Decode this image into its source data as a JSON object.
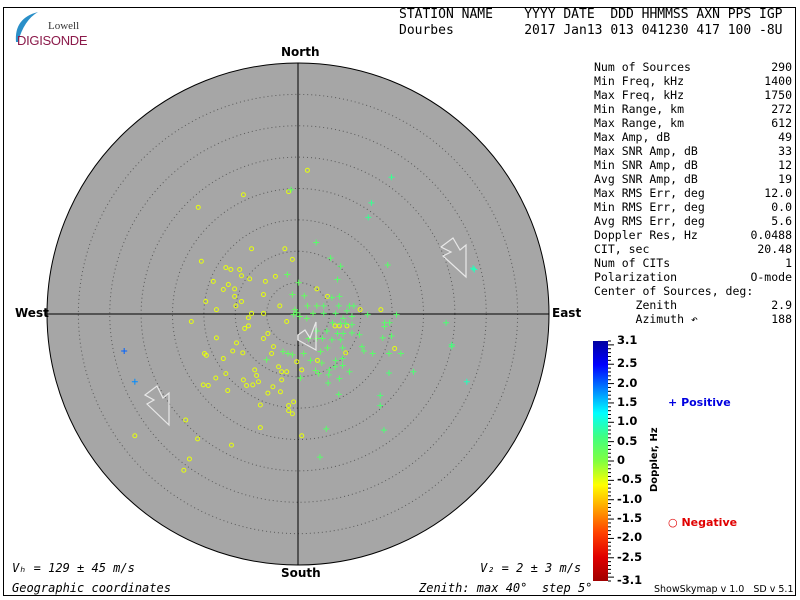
{
  "logo": {
    "line1": "Lowell",
    "line2": "DIGISONDE"
  },
  "header": {
    "labels": "STATION NAME    YYYY DATE  DDD HHMMSS AXN PPS IGP",
    "values": "Dourbes         2017 Jan13 013 041230 417 100 -8U"
  },
  "directions": {
    "north": "North",
    "south": "South",
    "east": "East",
    "west": "West"
  },
  "stats": [
    {
      "label": "Num of Sources",
      "value": "290"
    },
    {
      "label": "Min Freq, kHz",
      "value": "1400"
    },
    {
      "label": "Max Freq, kHz",
      "value": "1750"
    },
    {
      "label": "Min Range, km",
      "value": "272"
    },
    {
      "label": "Max Range, km",
      "value": "612"
    },
    {
      "label": "Max Amp, dB",
      "value": "49"
    },
    {
      "label": "Max SNR Amp, dB",
      "value": "33"
    },
    {
      "label": "Min SNR Amp, dB",
      "value": "12"
    },
    {
      "label": "Avg SNR Amp, dB",
      "value": "19"
    },
    {
      "label": "Max RMS Err, deg",
      "value": "12.0"
    },
    {
      "label": "Min RMS Err, deg",
      "value": "0.0"
    },
    {
      "label": "Avg RMS Err, deg",
      "value": "5.6"
    },
    {
      "label": "Doppler Res, Hz",
      "value": "0.0488"
    },
    {
      "label": "CIT, sec",
      "value": "20.48"
    },
    {
      "label": "Num of CITs",
      "value": "1"
    },
    {
      "label": "Polarization",
      "value": "O-mode"
    },
    {
      "label": "Center of Sources, deg:",
      "value": ""
    },
    {
      "label": "      Zenith",
      "value": "2.9"
    },
    {
      "label": "      Azimuth ↶",
      "value": "188"
    }
  ],
  "footer": {
    "vh": "Vₕ = 129 ± 45 m/s",
    "vz": "V₂ = 2 ± 3 m/s",
    "coords": "Geographic coordinates",
    "zenith": "Zenith: max 40°  step 5°",
    "version": "ShowSkymap v 1.0   SD v 5.1"
  },
  "colorbar": {
    "title": "Doppler, Hz",
    "ticks": [
      "3.1",
      "2.5",
      "2.0",
      "1.5",
      "1.0",
      "0.5",
      "0",
      "-0.5",
      "-1.0",
      "-1.5",
      "-2.0",
      "-2.5",
      "-3.1"
    ],
    "range": [
      -3.1,
      3.1
    ],
    "colors": [
      "#0000a0",
      "#0000ff",
      "#0080ff",
      "#00ffff",
      "#40ff80",
      "#80ff40",
      "#ffff00",
      "#ffa000",
      "#ff4000",
      "#e00000",
      "#a00000"
    ]
  },
  "legend": {
    "positive": "Positive",
    "positive_color": "#0000e0",
    "negative": "Negative",
    "negative_color": "#e00000"
  },
  "chart_data": {
    "type": "scatter",
    "title": "",
    "zenith_max_deg": 40,
    "ring_step_deg": 5,
    "point_format": "[east_deg, north_deg, doppler_hz]",
    "negative_points": [
      [
        1.5,
        22.9,
        -0.5
      ],
      [
        -8.7,
        19.0,
        -0.5
      ],
      [
        -15.9,
        17.0,
        -0.5
      ],
      [
        -1.5,
        19.5,
        -0.5
      ],
      [
        -7.4,
        10.4,
        -0.5
      ],
      [
        -2.1,
        10.4,
        -0.5
      ],
      [
        -15.4,
        8.4,
        -0.5
      ],
      [
        -0.9,
        8.7,
        -0.5
      ],
      [
        -11.5,
        7.4,
        -0.5
      ],
      [
        -10.7,
        7.1,
        -0.5
      ],
      [
        -9.3,
        7.1,
        -0.5
      ],
      [
        -9.0,
        6.1,
        -0.5
      ],
      [
        -13.5,
        5.2,
        -0.5
      ],
      [
        -7.7,
        5.6,
        -0.5
      ],
      [
        -3.6,
        6.0,
        -0.5
      ],
      [
        -11.1,
        4.7,
        -0.5
      ],
      [
        -11.9,
        3.9,
        -0.5
      ],
      [
        -10.1,
        4.0,
        -0.5
      ],
      [
        -5.2,
        5.2,
        -0.5
      ],
      [
        -14.7,
        2.0,
        -0.5
      ],
      [
        -13.0,
        0.7,
        -0.5
      ],
      [
        -10.1,
        2.8,
        -0.5
      ],
      [
        -9.0,
        2.0,
        -0.5
      ],
      [
        -9.9,
        1.3,
        -0.5
      ],
      [
        -5.5,
        3.1,
        -0.5
      ],
      [
        -2.9,
        1.3,
        -0.5
      ],
      [
        -7.4,
        0.1,
        -0.5
      ],
      [
        -7.9,
        -0.6,
        -0.5
      ],
      [
        -5.5,
        0.1,
        -0.5
      ],
      [
        -7.9,
        -1.9,
        -0.5
      ],
      [
        -8.5,
        -2.3,
        -0.5
      ],
      [
        -17.0,
        -1.2,
        -0.5
      ],
      [
        -13.0,
        -3.8,
        -0.5
      ],
      [
        -9.8,
        -4.6,
        -0.5
      ],
      [
        -10.4,
        -5.9,
        -0.5
      ],
      [
        -14.9,
        -6.3,
        -0.5
      ],
      [
        -14.6,
        -6.6,
        -0.5
      ],
      [
        -11.9,
        -7.1,
        -0.5
      ],
      [
        -8.8,
        -6.2,
        -0.5
      ],
      [
        -5.5,
        -3.9,
        -0.5
      ],
      [
        -4.8,
        -3.1,
        -0.5
      ],
      [
        -3.9,
        -5.2,
        -0.5
      ],
      [
        -4.2,
        -6.3,
        -0.5
      ],
      [
        -6.9,
        -8.9,
        -0.5
      ],
      [
        -6.6,
        -9.8,
        -0.5
      ],
      [
        -13.1,
        -10.2,
        -0.5
      ],
      [
        -11.5,
        -9.5,
        -0.5
      ],
      [
        -15.1,
        -11.3,
        -0.5
      ],
      [
        -14.3,
        -11.4,
        -0.5
      ],
      [
        -11.2,
        -12.2,
        -0.5
      ],
      [
        -8.7,
        -10.5,
        -0.5
      ],
      [
        -8.2,
        -11.4,
        -0.5
      ],
      [
        -7.2,
        -11.3,
        -0.5
      ],
      [
        -6.3,
        -10.8,
        -0.5
      ],
      [
        -4.8,
        -12.6,
        -0.5
      ],
      [
        -2.8,
        -12.4,
        -0.5
      ],
      [
        -4.0,
        -11.6,
        -0.5
      ],
      [
        -3.1,
        -8.4,
        -0.5
      ],
      [
        -2.6,
        -9.2,
        -0.5
      ],
      [
        -2.6,
        -10.5,
        -0.5
      ],
      [
        -6.0,
        -14.5,
        -0.5
      ],
      [
        -1.5,
        -14.6,
        -0.5
      ],
      [
        -1.5,
        -15.4,
        -0.5
      ],
      [
        -0.9,
        -15.9,
        -0.5
      ],
      [
        -0.7,
        -14.0,
        -0.5
      ],
      [
        -6.0,
        -18.1,
        -0.5
      ],
      [
        -17.9,
        -16.9,
        -0.5
      ],
      [
        -16.0,
        -19.9,
        -0.5
      ],
      [
        -10.6,
        -20.9,
        -0.5
      ],
      [
        -17.3,
        -23.1,
        -0.5
      ],
      [
        0.6,
        -19.4,
        -0.5
      ],
      [
        -1.8,
        -9.2,
        -0.5
      ],
      [
        -1.8,
        -1.2,
        -0.5
      ],
      [
        3.0,
        4.0,
        -0.5
      ],
      [
        4.7,
        2.8,
        -0.5
      ],
      [
        5.9,
        -1.9,
        -0.5
      ],
      [
        6.6,
        -1.9,
        -0.5
      ],
      [
        7.8,
        -1.9,
        -0.5
      ],
      [
        9.9,
        0.7,
        -0.5
      ],
      [
        13.2,
        0.7,
        -0.5
      ],
      [
        15.4,
        -5.5,
        -0.5
      ],
      [
        7.6,
        -6.2,
        -0.5
      ],
      [
        -0.2,
        -7.6,
        -0.5
      ],
      [
        0.6,
        -8.9,
        -0.5
      ],
      [
        3.1,
        -7.4,
        -0.5
      ],
      [
        -26.0,
        -19.4,
        -0.5
      ],
      [
        -18.2,
        -24.9,
        -0.5
      ]
    ],
    "positive_points": [
      [
        14.9,
        21.8,
        0.7
      ],
      [
        11.7,
        17.7,
        0.7
      ],
      [
        11.2,
        15.4,
        0.7
      ],
      [
        2.9,
        11.4,
        0.4
      ],
      [
        5.2,
        8.9,
        0.4
      ],
      [
        6.8,
        7.6,
        0.4
      ],
      [
        14.3,
        7.8,
        0.4
      ],
      [
        6.3,
        5.5,
        0.4
      ],
      [
        28.1,
        7.1,
        0.9
      ],
      [
        -1.7,
        6.3,
        0.3
      ],
      [
        0.1,
        5.0,
        0.3
      ],
      [
        -0.9,
        3.1,
        0.3
      ],
      [
        1.0,
        2.9,
        0.3
      ],
      [
        1.5,
        1.3,
        0.3
      ],
      [
        3.0,
        1.3,
        0.3
      ],
      [
        5.4,
        2.6,
        0.4
      ],
      [
        6.6,
        2.8,
        0.4
      ],
      [
        4.1,
        1.3,
        0.4
      ],
      [
        6.5,
        1.3,
        0.4
      ],
      [
        8.2,
        1.3,
        0.4
      ],
      [
        8.9,
        1.3,
        0.4
      ],
      [
        7.8,
        0.5,
        0.4
      ],
      [
        4.1,
        0.1,
        0.4
      ],
      [
        6.0,
        0.1,
        0.4
      ],
      [
        11.1,
        -0.1,
        0.4
      ],
      [
        15.7,
        -0.1,
        0.4
      ],
      [
        7.2,
        -0.7,
        0.4
      ],
      [
        8.6,
        -0.4,
        0.4
      ],
      [
        5.5,
        -1.4,
        0.4
      ],
      [
        6.8,
        -1.5,
        0.4
      ],
      [
        7.6,
        -1.5,
        0.4
      ],
      [
        8.6,
        -1.7,
        0.4
      ],
      [
        13.8,
        -1.4,
        0.4
      ],
      [
        14.6,
        -1.4,
        0.4
      ],
      [
        23.6,
        -1.4,
        0.5
      ],
      [
        13.8,
        -2.0,
        0.4
      ],
      [
        3.0,
        -2.7,
        0.4
      ],
      [
        4.6,
        -2.7,
        0.4
      ],
      [
        6.3,
        -3.1,
        0.4
      ],
      [
        7.2,
        -3.1,
        0.4
      ],
      [
        8.6,
        -3.0,
        0.4
      ],
      [
        9.8,
        -3.3,
        0.4
      ],
      [
        14.9,
        -3.5,
        0.4
      ],
      [
        13.5,
        -3.8,
        0.4
      ],
      [
        1.7,
        -3.9,
        0.3
      ],
      [
        3.0,
        -3.9,
        0.3
      ],
      [
        3.9,
        -3.9,
        0.4
      ],
      [
        5.4,
        -4.1,
        0.4
      ],
      [
        6.8,
        -4.1,
        0.4
      ],
      [
        10.2,
        -5.2,
        0.4
      ],
      [
        10.5,
        -5.9,
        0.4
      ],
      [
        24.5,
        -5.2,
        0.5
      ],
      [
        11.9,
        -6.3,
        0.4
      ],
      [
        14.5,
        -6.3,
        0.4
      ],
      [
        16.4,
        -6.3,
        0.4
      ],
      [
        3.6,
        -6.0,
        0.3
      ],
      [
        4.7,
        -5.4,
        0.3
      ],
      [
        7.1,
        -5.4,
        0.4
      ],
      [
        -2.4,
        -6.0,
        0.3
      ],
      [
        -1.6,
        -6.3,
        0.3
      ],
      [
        -0.9,
        -6.5,
        0.3
      ],
      [
        0.9,
        -6.3,
        0.3
      ],
      [
        -5.0,
        -7.3,
        0.3
      ],
      [
        2.0,
        -7.4,
        0.3
      ],
      [
        3.8,
        -7.8,
        0.3
      ],
      [
        6.0,
        -7.4,
        0.4
      ],
      [
        7.1,
        -7.1,
        0.4
      ],
      [
        5.0,
        -8.9,
        0.4
      ],
      [
        5.9,
        -8.4,
        0.4
      ],
      [
        7.1,
        -8.2,
        0.4
      ],
      [
        8.2,
        -9.2,
        0.4
      ],
      [
        14.5,
        -9.4,
        0.5
      ],
      [
        18.4,
        -9.2,
        0.5
      ],
      [
        2.8,
        -9.0,
        0.3
      ],
      [
        3.3,
        -9.5,
        0.3
      ],
      [
        4.9,
        -9.7,
        0.4
      ],
      [
        6.6,
        -10.3,
        0.4
      ],
      [
        0.4,
        -10.2,
        0.3
      ],
      [
        4.8,
        -11.0,
        0.4
      ],
      [
        6.5,
        -12.8,
        0.4
      ],
      [
        13.1,
        -13.0,
        0.5
      ],
      [
        13.1,
        -14.6,
        0.5
      ],
      [
        26.9,
        -10.8,
        0.9
      ],
      [
        4.5,
        -18.3,
        0.4
      ],
      [
        13.7,
        -18.5,
        0.5
      ],
      [
        3.5,
        -22.8,
        0.4
      ],
      [
        -0.7,
        -0.1,
        0.3
      ],
      [
        -0.2,
        0.2,
        0.3
      ],
      [
        -0.5,
        0.7,
        0.3
      ],
      [
        0.3,
        -0.4,
        0.3
      ],
      [
        1.4,
        -0.7,
        0.3
      ],
      [
        2.4,
        0.1,
        0.3
      ],
      [
        27.9,
        7.3,
        0.9
      ],
      [
        24.5,
        -4.9,
        0.6
      ],
      [
        -1.1,
        19.8,
        0.3
      ],
      [
        -27.7,
        -5.9,
        2.0
      ],
      [
        -26.0,
        -10.8,
        1.8
      ]
    ]
  }
}
